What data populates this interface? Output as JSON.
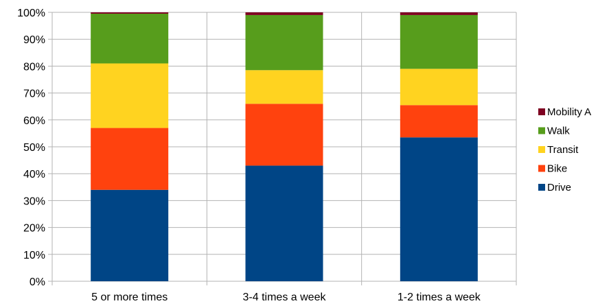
{
  "chart_data": {
    "type": "bar",
    "stacked": true,
    "percent_stacked": true,
    "categories": [
      "5 or more times",
      "3-4 times a week",
      "1-2 times a week"
    ],
    "series": [
      {
        "name": "Drive",
        "color": "#004586",
        "values": [
          34,
          43,
          53.5
        ]
      },
      {
        "name": "Bike",
        "color": "#ff420e",
        "values": [
          23,
          23,
          12
        ]
      },
      {
        "name": "Transit",
        "color": "#ffd320",
        "values": [
          24,
          12.5,
          13.5
        ]
      },
      {
        "name": "Walk",
        "color": "#579d1c",
        "values": [
          18.5,
          20.5,
          20
        ]
      },
      {
        "name": "Mobility A",
        "color": "#7e0021",
        "values": [
          0.5,
          1,
          1
        ]
      }
    ],
    "ylim": [
      0,
      100
    ],
    "yticks": [
      "0%",
      "10%",
      "20%",
      "30%",
      "40%",
      "50%",
      "60%",
      "70%",
      "80%",
      "90%",
      "100%"
    ],
    "xlabel": "",
    "ylabel": "",
    "title": "",
    "grid": true,
    "legend_position": "right"
  }
}
